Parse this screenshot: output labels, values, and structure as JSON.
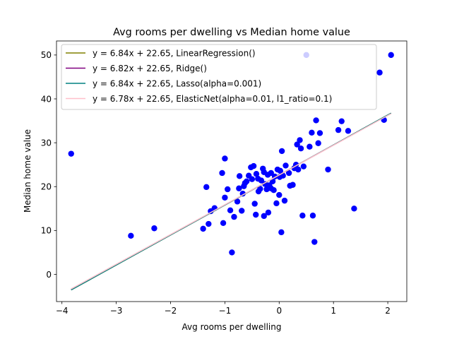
{
  "chart_data": {
    "type": "scatter",
    "title": "Avg rooms per dwelling vs Median home value",
    "xlabel": "Avg rooms per dwelling",
    "ylabel": "Median home value",
    "xlim": [
      -4.1,
      2.35
    ],
    "ylim": [
      -6.2,
      53.2
    ],
    "xticks": [
      -4,
      -3,
      -2,
      -1,
      0,
      1,
      2
    ],
    "yticks": [
      0,
      10,
      20,
      30,
      40,
      50
    ],
    "grid": false,
    "legend_placement": "upper-left",
    "scatter_color": "#0000ff",
    "points": [
      [
        -3.83,
        27.5
      ],
      [
        -2.73,
        8.8
      ],
      [
        -2.3,
        10.5
      ],
      [
        -1.4,
        10.4
      ],
      [
        -1.3,
        11.5
      ],
      [
        -1.34,
        19.9
      ],
      [
        -1.26,
        14.4
      ],
      [
        -1.19,
        15.1
      ],
      [
        -1.03,
        11.7
      ],
      [
        -1.05,
        23.1
      ],
      [
        -1.0,
        17.5
      ],
      [
        -1.0,
        26.4
      ],
      [
        -0.9,
        14.6
      ],
      [
        -0.87,
        5.0
      ],
      [
        -0.83,
        13.1
      ],
      [
        -0.77,
        16.6
      ],
      [
        -0.74,
        19.6
      ],
      [
        -0.73,
        22.4
      ],
      [
        -0.69,
        14.5
      ],
      [
        -0.67,
        18.4
      ],
      [
        -0.63,
        20.8
      ],
      [
        -0.6,
        21.2
      ],
      [
        -0.56,
        22.5
      ],
      [
        -0.52,
        24.4
      ],
      [
        -0.47,
        24.7
      ],
      [
        -0.45,
        16.1
      ],
      [
        -0.43,
        13.6
      ],
      [
        -0.39,
        21.8
      ],
      [
        -0.38,
        18.9
      ],
      [
        -0.35,
        19.5
      ],
      [
        -0.3,
        24.1
      ],
      [
        -0.28,
        13.3
      ],
      [
        -0.26,
        20.6
      ],
      [
        -0.23,
        19.4
      ],
      [
        -0.21,
        22.7
      ],
      [
        -0.2,
        14.1
      ],
      [
        -0.18,
        20.3
      ],
      [
        -0.15,
        23.1
      ],
      [
        -0.12,
        21.2
      ],
      [
        -0.1,
        19.2
      ],
      [
        -0.08,
        22.3
      ],
      [
        -0.05,
        16.2
      ],
      [
        -0.03,
        23.9
      ],
      [
        0.0,
        18.1
      ],
      [
        0.02,
        23.6
      ],
      [
        0.04,
        9.6
      ],
      [
        0.05,
        28.1
      ],
      [
        0.07,
        22.5
      ],
      [
        0.1,
        16.8
      ],
      [
        0.12,
        24.8
      ],
      [
        0.18,
        23.1
      ],
      [
        0.25,
        20.4
      ],
      [
        0.28,
        24.2
      ],
      [
        0.33,
        29.6
      ],
      [
        0.35,
        23.9
      ],
      [
        0.38,
        30.6
      ],
      [
        0.4,
        28.7
      ],
      [
        0.43,
        13.4
      ],
      [
        0.45,
        24.6
      ],
      [
        0.5,
        50.0
      ],
      [
        0.56,
        29.1
      ],
      [
        0.6,
        32.3
      ],
      [
        0.62,
        13.4
      ],
      [
        0.65,
        7.4
      ],
      [
        0.68,
        35.1
      ],
      [
        0.72,
        29.9
      ],
      [
        0.75,
        32.2
      ],
      [
        0.9,
        23.9
      ],
      [
        1.09,
        32.9
      ],
      [
        1.15,
        34.9
      ],
      [
        1.27,
        32.7
      ],
      [
        1.38,
        15.0
      ],
      [
        1.85,
        46.0
      ],
      [
        1.93,
        35.2
      ],
      [
        2.06,
        50.0
      ],
      [
        -0.28,
        23.3
      ],
      [
        -0.5,
        21.7
      ],
      [
        -0.95,
        19.4
      ],
      [
        -0.15,
        19.6
      ],
      [
        0.2,
        20.2
      ],
      [
        -0.65,
        20.1
      ],
      [
        -0.42,
        22.9
      ],
      [
        0.31,
        25.0
      ],
      [
        0.01,
        22.2
      ],
      [
        -0.33,
        21.4
      ]
    ],
    "series": [
      {
        "name": "y = 6.84x + 22.65, LinearRegression()",
        "slope": 6.84,
        "intercept": 22.65,
        "color": "#808000"
      },
      {
        "name": "y = 6.82x + 22.65, Ridge()",
        "slope": 6.82,
        "intercept": 22.65,
        "color": "#800080"
      },
      {
        "name": "y = 6.84x + 22.65, Lasso(alpha=0.001)",
        "slope": 6.84,
        "intercept": 22.65,
        "color": "#008080"
      },
      {
        "name": "y = 6.78x + 22.65, ElasticNet(alpha=0.01, l1_ratio=0.1)",
        "slope": 6.78,
        "intercept": 22.65,
        "color": "#ffc0cb"
      }
    ],
    "line_x_range": [
      -3.83,
      2.06
    ]
  }
}
